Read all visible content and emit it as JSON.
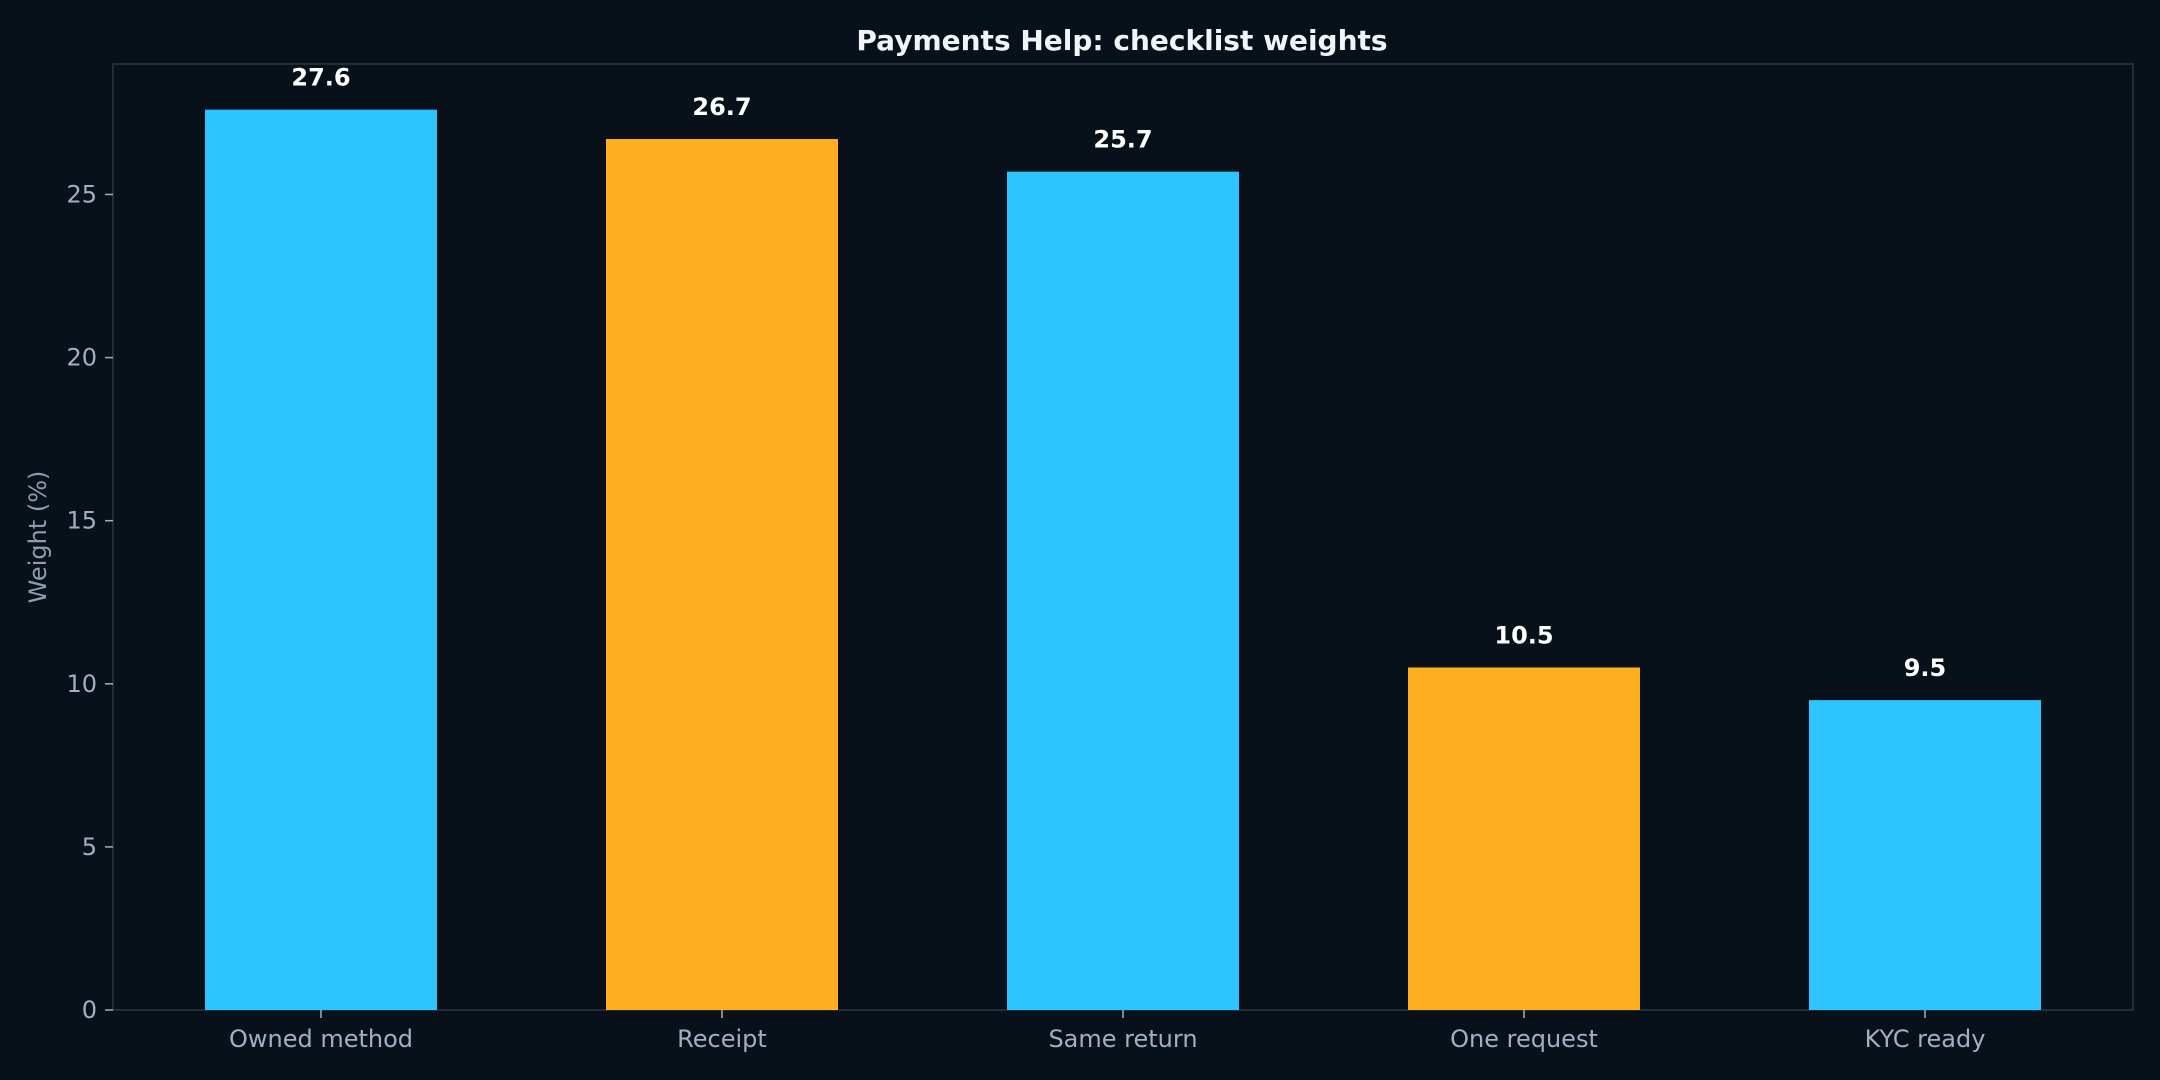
{
  "chart_data": {
    "type": "bar",
    "title": "Payments Help: checklist weights",
    "xlabel": "",
    "ylabel": "Weight (%)",
    "categories": [
      "Owned method",
      "Receipt",
      "Same return",
      "One request",
      "KYC ready"
    ],
    "values": [
      27.6,
      26.7,
      25.7,
      10.5,
      9.5
    ],
    "data_labels": [
      "27.6",
      "26.7",
      "25.7",
      "10.5",
      "9.5"
    ],
    "bar_colors": [
      "#2ec4ff",
      "#ffb020",
      "#2ec4ff",
      "#ffb020",
      "#2ec4ff"
    ],
    "ylim": [
      0,
      29.0
    ],
    "yticks": [
      0,
      5,
      10,
      15,
      20,
      25
    ],
    "grid": false,
    "legend": "none"
  },
  "colors": {
    "background": "#08111a",
    "plot_border": "#2a3545",
    "title": "#f2f5f8",
    "tick_text": "#9fb0c2",
    "axis_label": "#8d9db0",
    "data_label": "#ffffff",
    "tick_mark": "#9fb0c2"
  }
}
